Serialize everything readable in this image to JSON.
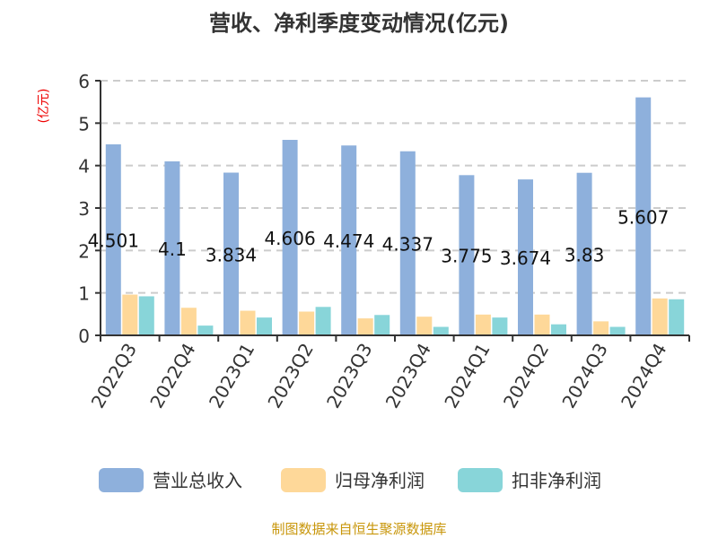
{
  "chart_data": {
    "type": "bar",
    "title": "营收、净利季度变动情况(亿元)",
    "ylabel": "(亿元)",
    "xlabel": "",
    "ylim": [
      0,
      6
    ],
    "yticks": [
      0,
      1,
      2,
      3,
      4,
      5,
      6
    ],
    "grid": true,
    "legend_position": "bottom",
    "categories": [
      "2022Q3",
      "2022Q4",
      "2023Q1",
      "2023Q2",
      "2023Q3",
      "2023Q4",
      "2024Q1",
      "2024Q2",
      "2024Q3",
      "2024Q4"
    ],
    "series": [
      {
        "name": "营业总收入",
        "color": "#8eb0dc",
        "values": [
          4.501,
          4.1,
          3.834,
          4.606,
          4.474,
          4.337,
          3.775,
          3.674,
          3.83,
          5.607
        ],
        "labels": [
          "4.501",
          "4.1",
          "3.834",
          "4.606",
          "4.474",
          "4.337",
          "3.775",
          "3.674",
          "3.83",
          "5.607"
        ]
      },
      {
        "name": "归母净利润",
        "color": "#fed899",
        "values": [
          0.96,
          0.65,
          0.58,
          0.56,
          0.4,
          0.44,
          0.49,
          0.49,
          0.33,
          0.87
        ]
      },
      {
        "name": "扣非净利润",
        "color": "#88d5d9",
        "values": [
          0.92,
          0.23,
          0.42,
          0.67,
          0.48,
          0.2,
          0.42,
          0.26,
          0.2,
          0.85
        ]
      }
    ],
    "source": "制图数据来自恒生聚源数据库"
  }
}
